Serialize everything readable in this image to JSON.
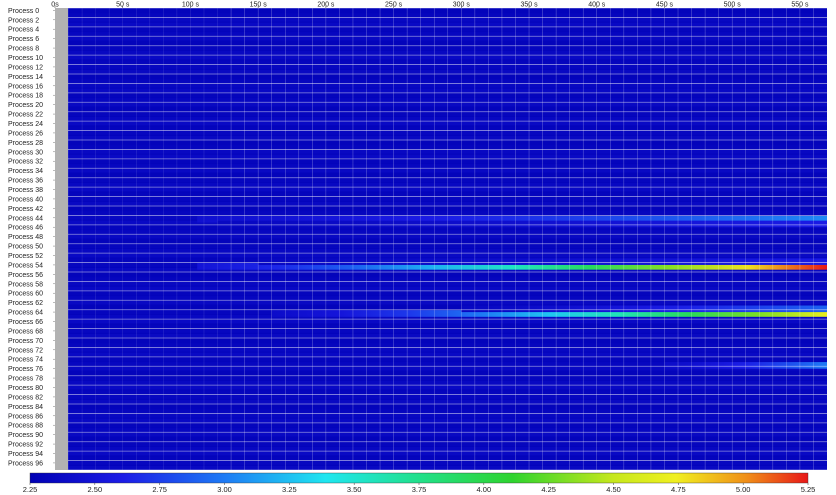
{
  "chart_data": {
    "type": "heatmap",
    "title": "",
    "x_ticks": [
      "0s",
      "50 s",
      "100 s",
      "150 s",
      "200 s",
      "250 s",
      "300 s",
      "350 s",
      "400 s",
      "450 s",
      "500 s",
      "550 s"
    ],
    "x_tick_values": [
      0,
      50,
      100,
      150,
      200,
      250,
      300,
      350,
      400,
      450,
      500,
      550
    ],
    "xlim": [
      0,
      570
    ],
    "y_labels": [
      "Process 0",
      "Process 2",
      "Process 4",
      "Process 6",
      "Process 8",
      "Process 10",
      "Process 12",
      "Process 14",
      "Process 16",
      "Process 18",
      "Process 20",
      "Process 22",
      "Process 24",
      "Process 26",
      "Process 28",
      "Process 30",
      "Process 32",
      "Process 34",
      "Process 36",
      "Process 38",
      "Process 40",
      "Process 42",
      "Process 44",
      "Process 46",
      "Process 48",
      "Process 50",
      "Process 52",
      "Process 54",
      "Process 56",
      "Process 58",
      "Process 60",
      "Process 62",
      "Process 64",
      "Process 66",
      "Process 68",
      "Process 70",
      "Process 72",
      "Process 74",
      "Process 76",
      "Process 78",
      "Process 80",
      "Process 82",
      "Process 84",
      "Process 86",
      "Process 88",
      "Process 90",
      "Process 92",
      "Process 94",
      "Process 96"
    ],
    "process_count": 98,
    "baseline_value": 2.3,
    "hot_processes": [
      {
        "process": 44,
        "start": 105,
        "end": 570,
        "start_value": 2.45,
        "end_value": 3.05
      },
      {
        "process": 45,
        "start": 120,
        "end": 570,
        "start_value": 2.35,
        "end_value": 2.6
      },
      {
        "process": 54,
        "start": 105,
        "end": 570,
        "start_value": 2.5,
        "end_value": 5.25
      },
      {
        "process": 53,
        "start": 150,
        "end": 570,
        "start_value": 2.35,
        "end_value": 2.6
      },
      {
        "process": 64,
        "start": 160,
        "end": 570,
        "start_value": 2.4,
        "end_value": 4.7
      },
      {
        "process": 63,
        "start": 300,
        "end": 570,
        "start_value": 2.35,
        "end_value": 2.9
      },
      {
        "process": 75,
        "start": 450,
        "end": 570,
        "start_value": 2.4,
        "end_value": 3.0
      }
    ],
    "colorbar": {
      "min": 2.25,
      "max": 5.25,
      "tick_labels": [
        "2.25",
        "2.50",
        "2.75",
        "3.00",
        "3.25",
        "3.50",
        "3.75",
        "4.00",
        "4.25",
        "4.50",
        "4.75",
        "5.00",
        "5.25"
      ],
      "tick_values": [
        2.25,
        2.5,
        2.75,
        3.0,
        3.25,
        3.5,
        3.75,
        4.0,
        4.25,
        4.5,
        4.75,
        5.0,
        5.25
      ]
    },
    "colors": {
      "low": "#1c1ce6",
      "mid_low": "#1e7bf5",
      "mid": "#1fe6f0",
      "mid_high": "#2ed42e",
      "high": "#f0f020",
      "top": "#e81818",
      "gap": "#b2b2b2",
      "grid": "#ffffff"
    }
  }
}
